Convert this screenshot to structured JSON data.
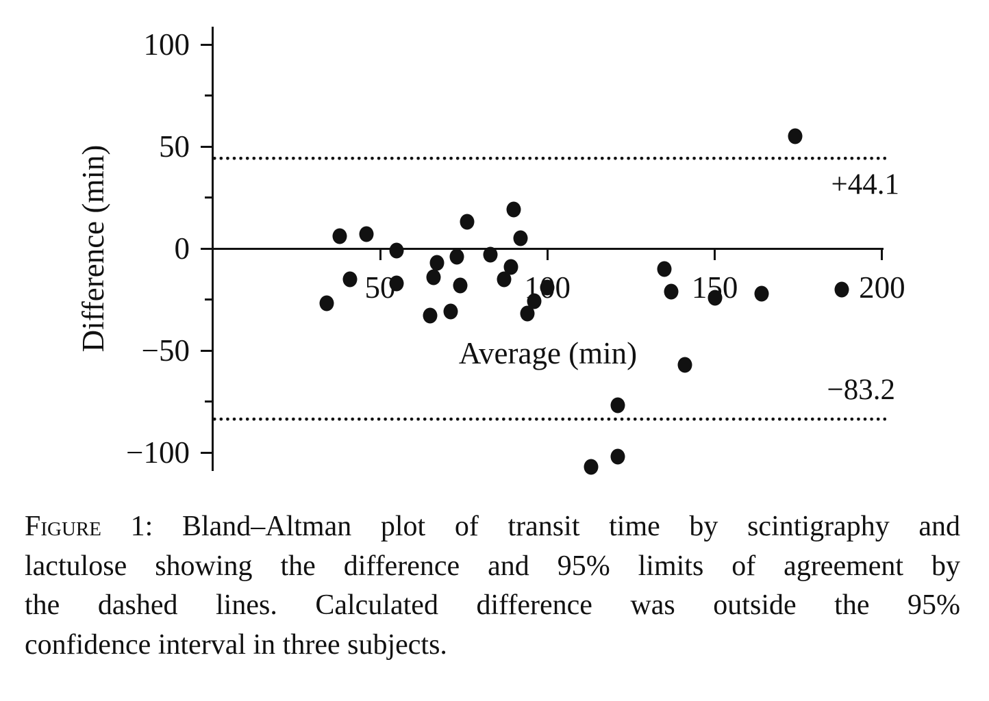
{
  "figure": {
    "colors": {
      "ink": "#111111",
      "background": "#ffffff"
    }
  },
  "chart_data": {
    "type": "scatter",
    "title": "",
    "xlabel": "Average (min)",
    "ylabel": "Difference (min)",
    "xlim": [
      0,
      200
    ],
    "ylim": [
      -110,
      110
    ],
    "grid": false,
    "zero_line": 0,
    "upper_loa": 44.1,
    "lower_loa": -83.2,
    "x_ticks": [
      {
        "v": 50,
        "label": "50"
      },
      {
        "v": 100,
        "label": "100"
      },
      {
        "v": 150,
        "label": "150"
      },
      {
        "v": 200,
        "label": "200"
      }
    ],
    "y_ticks": [
      {
        "v": 100,
        "label": "100"
      },
      {
        "v": 50,
        "label": "50"
      },
      {
        "v": 0,
        "label": "0"
      },
      {
        "v": -50,
        "label": "−50"
      },
      {
        "v": -100,
        "label": "−100"
      }
    ],
    "y_minor_ticks": [
      75,
      25,
      -25,
      -75
    ],
    "annotations": {
      "upper_label": "+44.1",
      "lower_label": "−83.2"
    },
    "points": [
      {
        "x": 34,
        "y": -27
      },
      {
        "x": 38,
        "y": 6
      },
      {
        "x": 41,
        "y": -15
      },
      {
        "x": 46,
        "y": 7
      },
      {
        "x": 55,
        "y": -1
      },
      {
        "x": 55,
        "y": -17
      },
      {
        "x": 65,
        "y": -33
      },
      {
        "x": 66,
        "y": -14
      },
      {
        "x": 67,
        "y": -7
      },
      {
        "x": 71,
        "y": -31
      },
      {
        "x": 73,
        "y": -4
      },
      {
        "x": 74,
        "y": -18
      },
      {
        "x": 76,
        "y": 13
      },
      {
        "x": 83,
        "y": -3
      },
      {
        "x": 87,
        "y": -15
      },
      {
        "x": 89,
        "y": -9
      },
      {
        "x": 90,
        "y": 19
      },
      {
        "x": 92,
        "y": 5
      },
      {
        "x": 94,
        "y": -32
      },
      {
        "x": 96,
        "y": -26
      },
      {
        "x": 100,
        "y": -19
      },
      {
        "x": 113,
        "y": -107
      },
      {
        "x": 121,
        "y": -102
      },
      {
        "x": 121,
        "y": -77
      },
      {
        "x": 135,
        "y": -10
      },
      {
        "x": 137,
        "y": -21
      },
      {
        "x": 141,
        "y": -57
      },
      {
        "x": 150,
        "y": -24
      },
      {
        "x": 164,
        "y": -22
      },
      {
        "x": 174,
        "y": 55
      },
      {
        "x": 188,
        "y": -20
      }
    ]
  },
  "caption": {
    "figure_label": "Figure 1:",
    "line1_rest": "Bland–Altman plot of transit time by scintigraphy and",
    "line2": "lactulose showing the difference and 95% limits of agreement by",
    "line3": "the dashed lines. Calculated difference was outside the 95%",
    "line4": "confidence interval in three subjects."
  }
}
